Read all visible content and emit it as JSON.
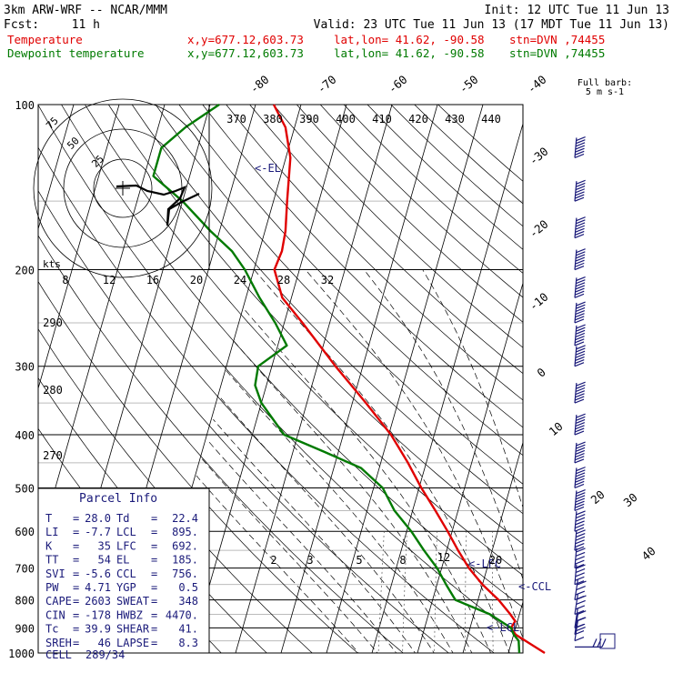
{
  "header": {
    "model": "3km ARW-WRF -- NCAR/MMM",
    "init": "Init: 12 UTC Tue 11 Jun 13",
    "fcst_label": "Fcst:",
    "fcst_value": "11 h",
    "valid": "Valid: 23 UTC Tue 11 Jun 13 (17 MDT Tue 11 Jun 13)",
    "temp_label": "Temperature",
    "dew_label": "Dewpoint temperature",
    "xy": "x,y=677.12,603.73",
    "latlon": "lat,lon= 41.62, -90.58",
    "stn": "stn=DVN ,74455"
  },
  "colors": {
    "temperature": "#e00000",
    "dewpoint": "#007a00",
    "wind": "#1a1a7a",
    "index_text": "#1a1a7a"
  },
  "chart_data": {
    "type": "line",
    "pressure_ticks": [
      "100",
      "200",
      "300",
      "400",
      "500",
      "600",
      "700",
      "800",
      "900",
      "1000"
    ],
    "isotherm_labels": [
      "-80",
      "-70",
      "-60",
      "-50",
      "-40",
      "-30",
      "-20",
      "-10",
      "0",
      "10",
      "20",
      "30",
      "40"
    ],
    "theta_labels": [
      "370",
      "380",
      "390",
      "400",
      "410",
      "420",
      "430",
      "440"
    ],
    "theta_left_labels": [
      "290",
      "280",
      "270"
    ],
    "mixing_ratio_labels": [
      "2",
      "3",
      "5",
      "8",
      "12",
      "20"
    ],
    "hodo_speed_labels": [
      "8",
      "12",
      "16",
      "20",
      "24",
      "28",
      "32"
    ],
    "hodo_ring_labels": [
      "75",
      "50",
      "25"
    ],
    "hodo_unit": "kts",
    "levels_labels": {
      "el": "EL",
      "lfc": "LFC",
      "ccl": "CCL",
      "lcl": "LCL"
    },
    "barb_legend": {
      "title": "Full barb:",
      "unit": "5 m s-1"
    },
    "series": [
      {
        "name": "Temperature",
        "points": [
          {
            "p": 1000,
            "t": 28.0
          },
          {
            "p": 950,
            "t": 23.0
          },
          {
            "p": 925,
            "t": 20.4
          },
          {
            "p": 900,
            "t": 19.0
          },
          {
            "p": 875,
            "t": 19.5
          },
          {
            "p": 850,
            "t": 18.0
          },
          {
            "p": 800,
            "t": 14.5
          },
          {
            "p": 750,
            "t": 10.0
          },
          {
            "p": 700,
            "t": 6.0
          },
          {
            "p": 650,
            "t": 2.5
          },
          {
            "p": 600,
            "t": -1.0
          },
          {
            "p": 550,
            "t": -5.0
          },
          {
            "p": 500,
            "t": -9.5
          },
          {
            "p": 450,
            "t": -14.0
          },
          {
            "p": 400,
            "t": -19.5
          },
          {
            "p": 350,
            "t": -27.0
          },
          {
            "p": 300,
            "t": -36.0
          },
          {
            "p": 250,
            "t": -46.0
          },
          {
            "p": 225,
            "t": -52.0
          },
          {
            "p": 200,
            "t": -55.5
          },
          {
            "p": 185,
            "t": -55.0
          },
          {
            "p": 170,
            "t": -55.5
          },
          {
            "p": 150,
            "t": -57.0
          },
          {
            "p": 125,
            "t": -59.0
          },
          {
            "p": 110,
            "t": -62.0
          },
          {
            "p": 100,
            "t": -66.0
          }
        ]
      },
      {
        "name": "Dewpoint temperature",
        "points": [
          {
            "p": 1000,
            "t": 22.4
          },
          {
            "p": 950,
            "t": 21.5
          },
          {
            "p": 925,
            "t": 20.0
          },
          {
            "p": 900,
            "t": 19.0
          },
          {
            "p": 850,
            "t": 13.5
          },
          {
            "p": 800,
            "t": 5.0
          },
          {
            "p": 750,
            "t": 2.0
          },
          {
            "p": 700,
            "t": -1.0
          },
          {
            "p": 650,
            "t": -5.0
          },
          {
            "p": 600,
            "t": -9.0
          },
          {
            "p": 550,
            "t": -14.0
          },
          {
            "p": 500,
            "t": -18.0
          },
          {
            "p": 460,
            "t": -24.0
          },
          {
            "p": 430,
            "t": -33.0
          },
          {
            "p": 400,
            "t": -43.0
          },
          {
            "p": 350,
            "t": -50.0
          },
          {
            "p": 325,
            "t": -52.5
          },
          {
            "p": 300,
            "t": -53.0
          },
          {
            "p": 275,
            "t": -48.0
          },
          {
            "p": 250,
            "t": -52.0
          },
          {
            "p": 225,
            "t": -57.0
          },
          {
            "p": 200,
            "t": -62.0
          },
          {
            "p": 185,
            "t": -66.0
          },
          {
            "p": 170,
            "t": -72.0
          },
          {
            "p": 150,
            "t": -80.0
          },
          {
            "p": 135,
            "t": -88.0
          },
          {
            "p": 120,
            "t": -88.0
          },
          {
            "p": 110,
            "t": -84.0
          },
          {
            "p": 100,
            "t": -78.0
          }
        ]
      }
    ],
    "wind_levels_hpa": [
      975,
      950,
      925,
      900,
      850,
      800,
      750,
      700,
      650,
      600,
      550,
      500,
      450,
      400,
      350,
      300,
      275,
      250,
      225,
      200,
      175,
      150,
      125
    ]
  },
  "parcel_info": {
    "title": "Parcel Info",
    "rows": [
      [
        {
          "k": "T",
          "v": "28.0"
        },
        {
          "k": "Td",
          "v": "22.4"
        }
      ],
      [
        {
          "k": "LI",
          "v": "-7.7"
        },
        {
          "k": "LCL",
          "v": "895."
        }
      ],
      [
        {
          "k": "K",
          "v": "35"
        },
        {
          "k": "LFC",
          "v": "692."
        }
      ],
      [
        {
          "k": "TT",
          "v": "54"
        },
        {
          "k": "EL",
          "v": "185."
        }
      ],
      [
        {
          "k": "SVI",
          "v": "-5.6"
        },
        {
          "k": "CCL",
          "v": "756."
        }
      ],
      [
        {
          "k": "PW",
          "v": "4.71"
        },
        {
          "k": "YGP",
          "v": "0.5"
        }
      ],
      [
        {
          "k": "CAPE",
          "v": "2603"
        },
        {
          "k": "SWEAT",
          "v": "348"
        }
      ],
      [
        {
          "k": "CIN",
          "v": "-178"
        },
        {
          "k": "HWBZ",
          "v": "4470."
        }
      ],
      [
        {
          "k": "Tc",
          "v": "39.9"
        },
        {
          "k": "SHEAR",
          "v": "41."
        }
      ],
      [
        {
          "k": "SREH",
          "v": "46"
        },
        {
          "k": "LAPSE",
          "v": "8.3"
        }
      ]
    ],
    "cell_label": "CELL",
    "cell_value": "289/34"
  }
}
